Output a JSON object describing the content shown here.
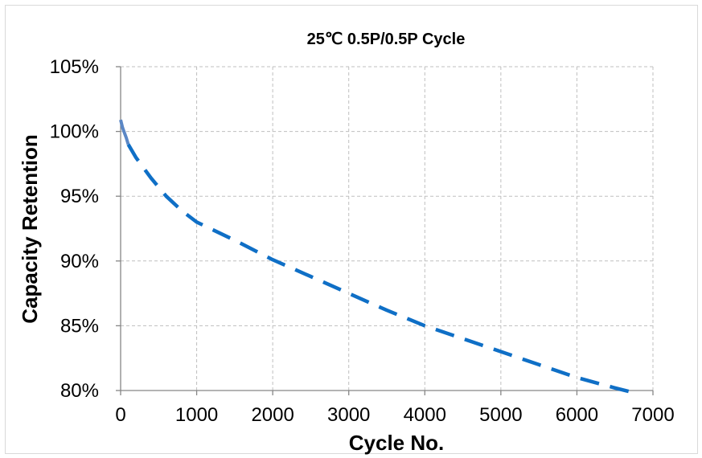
{
  "chart_data": {
    "type": "line",
    "title": "25℃ 0.5P/0.5P Cycle",
    "xlabel": "Cycle No.",
    "ylabel": "Capacity Retention",
    "xlim": [
      0,
      7000
    ],
    "ylim": [
      80,
      105
    ],
    "x_ticks": [
      0,
      1000,
      2000,
      3000,
      4000,
      5000,
      6000,
      7000
    ],
    "y_ticks": [
      80,
      85,
      90,
      95,
      100,
      105
    ],
    "x_tick_labels": [
      "0",
      "1000",
      "2000",
      "3000",
      "4000",
      "5000",
      "6000",
      "7000"
    ],
    "y_tick_labels": [
      "80%",
      "85%",
      "90%",
      "95%",
      "100%",
      "105%"
    ],
    "grid": true,
    "legend": "none",
    "series": [
      {
        "style": "solid",
        "color": "#5b87c5",
        "x": [
          0,
          25,
          50,
          75,
          100
        ],
        "y": [
          100.9,
          100.3,
          99.9,
          99.5,
          99.0
        ]
      },
      {
        "style": "dashed",
        "color": "#0f6fc6",
        "x": [
          100,
          200,
          400,
          600,
          800,
          1000,
          1500,
          2000,
          2500,
          3000,
          3500,
          4000,
          4500,
          5000,
          5500,
          6000,
          6500,
          6700
        ],
        "y": [
          99.0,
          98.0,
          96.4,
          95.0,
          93.9,
          93.0,
          91.6,
          90.1,
          88.8,
          87.5,
          86.2,
          85.0,
          84.0,
          83.0,
          82.0,
          81.0,
          80.2,
          79.9
        ]
      }
    ]
  }
}
